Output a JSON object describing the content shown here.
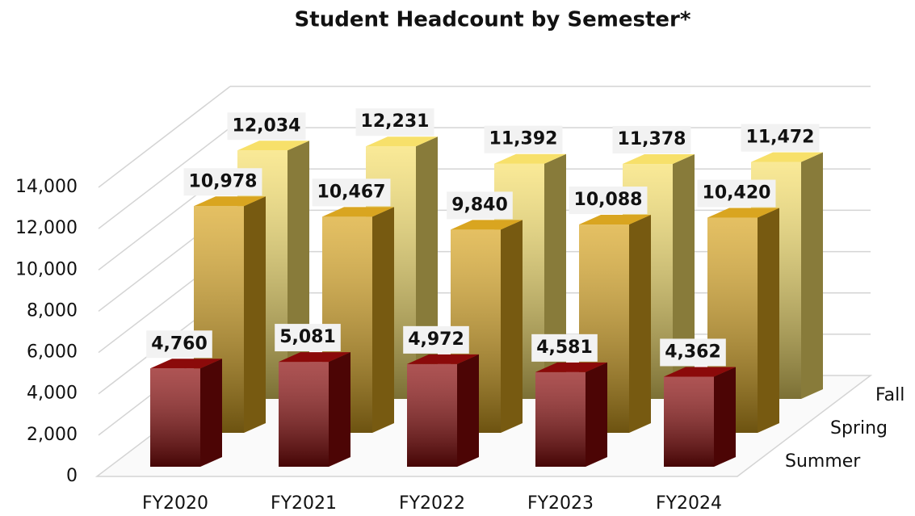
{
  "chart_data": {
    "type": "bar3d",
    "title": "Student Headcount by Semester*",
    "categories": [
      "FY2020",
      "FY2021",
      "FY2022",
      "FY2023",
      "FY2024"
    ],
    "series": [
      {
        "name": "Summer",
        "color": "#8b0a0a",
        "values": [
          4760,
          5081,
          4972,
          4581,
          4362
        ],
        "value_labels": [
          "4,760",
          "5,081",
          "4,972",
          "4,581",
          "4,362"
        ]
      },
      {
        "name": "Spring",
        "color": "#d9a520",
        "values": [
          10978,
          10467,
          9840,
          10088,
          10420
        ],
        "value_labels": [
          "10,978",
          "10,467",
          "9,840",
          "10,088",
          "10,420"
        ]
      },
      {
        "name": "Fall",
        "color": "#f7e06a",
        "values": [
          12034,
          12231,
          11392,
          11378,
          11472
        ],
        "value_labels": [
          "12,034",
          "12,231",
          "11,392",
          "11,378",
          "11,472"
        ]
      }
    ],
    "ylim": [
      0,
      14000
    ],
    "yticks": [
      0,
      {
        "value": 2000,
        "label": "2,000"
      },
      {
        "value": 4000,
        "label": "4,000"
      },
      {
        "value": 6000,
        "label": "6,000"
      },
      {
        "value": 8000,
        "label": "8,000"
      },
      {
        "value": 10000,
        "label": "10,000"
      },
      {
        "value": 12000,
        "label": "12,000"
      },
      {
        "value": 14000,
        "label": "14,000"
      }
    ],
    "grid": true
  }
}
